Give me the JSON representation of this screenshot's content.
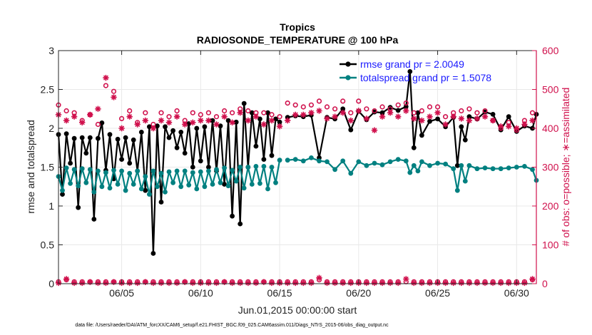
{
  "chart_data": {
    "type": "line",
    "title": "Tropics",
    "subtitle": "RADIOSONDE_TEMPERATURE @ 100 hPa",
    "xlabel": "Jun.01,2015 00:00:00 start",
    "ylabel": "rmse and totalspread",
    "ylabel_right": "# of obs: o=possible; ∗=assimilated",
    "footnote": "data file: /Users/raeder/DAI/ATM_forcXX/CAM6_setup/f.e21.FHIST_BGC.f09_025.CAM6assim.011/Diags_NTrS_2015-06/obs_diag_output.nc",
    "xlim": [
      1,
      31.25
    ],
    "ylim": [
      0,
      3
    ],
    "ylim_right": [
      0,
      600
    ],
    "x_ticks": [
      5,
      10,
      15,
      20,
      25,
      30
    ],
    "x_tick_labels": [
      "06/05",
      "06/10",
      "06/15",
      "06/20",
      "06/25",
      "06/30"
    ],
    "y_ticks": [
      0,
      0.5,
      1,
      1.5,
      2,
      2.5,
      3
    ],
    "y_tick_labels": [
      "0",
      "0.5",
      "1",
      "1.5",
      "2",
      "2.5",
      "3"
    ],
    "y_ticks_right": [
      0,
      100,
      200,
      300,
      400,
      500,
      600
    ],
    "y_tick_labels_right": [
      "0",
      "100",
      "200",
      "300",
      "400",
      "500",
      "600"
    ],
    "legend_position": "top-right",
    "colors": {
      "rmse": "#000000",
      "spread": "#008080",
      "obs": "#d0104c",
      "grid": "#e8e8e8"
    },
    "series": [
      {
        "name": "rmse",
        "legend": "rmse grand pr = 2.0049",
        "x": [
          1.0,
          1.25,
          1.5,
          1.75,
          2.0,
          2.25,
          2.5,
          2.75,
          3.0,
          3.25,
          3.5,
          3.75,
          4.0,
          4.25,
          4.5,
          4.75,
          5.0,
          5.25,
          5.5,
          5.75,
          6.0,
          6.25,
          6.5,
          6.75,
          7.0,
          7.25,
          7.5,
          7.75,
          8.0,
          8.25,
          8.5,
          8.75,
          9.0,
          9.25,
          9.5,
          9.75,
          10.0,
          10.25,
          10.5,
          10.75,
          11.0,
          11.25,
          11.5,
          11.75,
          12.0,
          12.25,
          12.5,
          12.75,
          13.0,
          13.25,
          13.5,
          13.75,
          14.0,
          14.25,
          14.5,
          14.75,
          15.0,
          null,
          15.5,
          16.0,
          16.5,
          17.0,
          17.5,
          18.0,
          18.5,
          19.0,
          19.5,
          20.0,
          20.5,
          21.0,
          21.5,
          22.0,
          22.5,
          23.0,
          23.25,
          23.5,
          23.75,
          24.0,
          24.5,
          25.0,
          25.5,
          26.0,
          26.25,
          26.5,
          26.75,
          27.0,
          27.5,
          28.0,
          28.5,
          29.0,
          29.5,
          30.0,
          30.5,
          31.0,
          31.25
        ],
        "y": [
          1.92,
          1.15,
          1.93,
          1.55,
          1.87,
          0.98,
          1.88,
          1.68,
          1.88,
          0.83,
          1.87,
          2.07,
          1.46,
          1.92,
          1.35,
          1.86,
          1.6,
          1.88,
          1.55,
          1.85,
          1.45,
          1.95,
          1.2,
          2.02,
          0.39,
          2.03,
          1.05,
          2.02,
          1.88,
          1.97,
          1.75,
          1.95,
          1.68,
          2.06,
          1.5,
          2.0,
          1.58,
          2.02,
          1.5,
          2.1,
          1.45,
          2.03,
          1.28,
          2.1,
          0.87,
          2.08,
          0.77,
          2.32,
          1.5,
          2.2,
          1.77,
          2.12,
          1.6,
          2.2,
          1.65,
          2.12,
          2.08,
          null,
          2.14,
          2.16,
          2.15,
          2.17,
          1.62,
          2.14,
          2.12,
          2.25,
          1.98,
          2.22,
          2.11,
          2.21,
          2.2,
          2.27,
          2.23,
          2.28,
          2.73,
          1.75,
          2.2,
          1.91,
          2.09,
          2.12,
          2.02,
          2.14,
          1.52,
          2.02,
          1.85,
          2.15,
          2.12,
          2.21,
          2.18,
          1.98,
          2.15,
          1.96,
          2.03,
          2.0,
          2.18
        ]
      },
      {
        "name": "totalspread",
        "legend": "totalspread grand pr = 1.5078",
        "x": [
          1.0,
          1.25,
          1.5,
          1.75,
          2.0,
          2.25,
          2.5,
          2.75,
          3.0,
          3.25,
          3.5,
          3.75,
          4.0,
          4.25,
          4.5,
          4.75,
          5.0,
          5.25,
          5.5,
          5.75,
          6.0,
          6.25,
          6.5,
          6.75,
          7.0,
          7.25,
          7.5,
          7.75,
          8.0,
          8.25,
          8.5,
          8.75,
          9.0,
          9.25,
          9.5,
          9.75,
          10.0,
          10.25,
          10.5,
          10.75,
          11.0,
          11.25,
          11.5,
          11.75,
          12.0,
          12.25,
          12.5,
          12.75,
          13.0,
          13.25,
          13.5,
          13.75,
          14.0,
          14.25,
          14.5,
          14.75,
          15.0,
          null,
          15.5,
          16.0,
          16.5,
          17.0,
          17.5,
          18.0,
          18.5,
          19.0,
          19.5,
          20.0,
          20.5,
          21.0,
          21.5,
          22.0,
          22.5,
          23.0,
          23.25,
          23.5,
          23.75,
          24.0,
          24.5,
          25.0,
          25.5,
          26.0,
          26.25,
          26.5,
          26.75,
          27.0,
          27.5,
          28.0,
          28.5,
          29.0,
          29.5,
          30.0,
          30.5,
          31.0,
          31.25
        ],
        "y": [
          1.38,
          1.2,
          1.49,
          1.29,
          1.47,
          1.26,
          1.48,
          1.3,
          1.47,
          1.18,
          1.45,
          1.25,
          1.43,
          1.23,
          1.46,
          1.28,
          1.45,
          1.2,
          1.42,
          1.28,
          1.45,
          1.22,
          1.38,
          1.15,
          1.45,
          1.25,
          1.42,
          1.18,
          1.44,
          1.3,
          1.45,
          1.25,
          1.45,
          1.27,
          1.43,
          1.22,
          1.44,
          1.25,
          1.45,
          1.28,
          1.47,
          1.3,
          1.49,
          1.26,
          1.46,
          1.32,
          1.5,
          1.23,
          1.5,
          1.28,
          1.51,
          1.29,
          1.51,
          1.22,
          1.5,
          1.3,
          1.59,
          null,
          1.59,
          1.6,
          1.58,
          1.62,
          1.58,
          1.57,
          1.47,
          1.58,
          1.42,
          1.57,
          1.52,
          1.55,
          1.53,
          1.57,
          1.6,
          1.58,
          1.43,
          1.52,
          1.45,
          1.57,
          1.52,
          1.55,
          1.54,
          1.48,
          1.2,
          1.52,
          1.32,
          1.52,
          1.48,
          1.49,
          1.48,
          1.48,
          1.49,
          1.5,
          1.51,
          1.47,
          1.33
        ]
      },
      {
        "name": "obs_possible",
        "axis": "right",
        "marker": "o",
        "x": [
          1.0,
          1.5,
          2.0,
          2.5,
          3.0,
          3.5,
          4.0,
          4.5,
          5.0,
          5.5,
          6.0,
          6.5,
          7.0,
          7.5,
          8.0,
          8.5,
          9.0,
          9.5,
          10.0,
          10.5,
          11.0,
          11.5,
          12.0,
          12.5,
          13.0,
          13.5,
          14.0,
          14.5,
          15.0,
          15.5,
          16.0,
          16.5,
          17.0,
          17.5,
          18.0,
          18.5,
          19.0,
          19.5,
          20.0,
          20.5,
          21.0,
          21.5,
          22.0,
          22.5,
          23.0,
          23.5,
          24.0,
          24.5,
          25.0,
          25.5,
          26.0,
          26.5,
          27.0,
          27.5,
          28.0,
          28.5,
          29.0,
          29.5,
          30.0,
          30.5,
          31.0
        ],
        "y": [
          460,
          445,
          440,
          420,
          435,
          410,
          510,
          495,
          425,
          445,
          415,
          440,
          410,
          440,
          430,
          445,
          420,
          440,
          435,
          440,
          430,
          445,
          440,
          450,
          445,
          440,
          440,
          435,
          430,
          465,
          460,
          455,
          460,
          470,
          455,
          450,
          470,
          440,
          470,
          450,
          445,
          455,
          450,
          460,
          465,
          440,
          445,
          455,
          455,
          430,
          440,
          445,
          450,
          440,
          445,
          420,
          400,
          415,
          395,
          420,
          440
        ]
      },
      {
        "name": "obs_assimilated",
        "axis": "right",
        "marker": "*",
        "x": [
          1.0,
          1.5,
          2.0,
          2.5,
          3.0,
          3.5,
          4.0,
          4.5,
          5.0,
          5.5,
          6.0,
          6.5,
          7.0,
          7.5,
          8.0,
          8.5,
          9.0,
          9.5,
          10.0,
          10.5,
          11.0,
          11.5,
          12.0,
          12.5,
          13.0,
          13.5,
          14.0,
          14.5,
          15.0,
          15.5,
          16.0,
          16.5,
          17.0,
          17.5,
          18.0,
          18.5,
          19.0,
          19.5,
          20.0,
          20.5,
          21.0,
          21.5,
          22.0,
          22.5,
          23.0,
          23.5,
          24.0,
          24.5,
          25.0,
          25.5,
          26.0,
          26.5,
          27.0,
          27.5,
          28.0,
          28.5,
          29.0,
          29.5,
          30.0,
          30.5,
          31.0
        ],
        "y": [
          435,
          420,
          430,
          415,
          435,
          450,
          530,
          480,
          400,
          430,
          410,
          420,
          400,
          420,
          415,
          430,
          410,
          415,
          420,
          420,
          410,
          430,
          415,
          440,
          420,
          430,
          410,
          420,
          405,
          420,
          435,
          435,
          440,
          445,
          425,
          430,
          440,
          420,
          445,
          425,
          395,
          430,
          440,
          430,
          445,
          425,
          420,
          430,
          440,
          410,
          430,
          425,
          420,
          425,
          430,
          420,
          405,
          405,
          400,
          410,
          420
        ]
      },
      {
        "name": "obs_possible_low",
        "axis": "right",
        "marker": "o",
        "x": [
          1.0,
          1.5,
          2.0,
          2.5,
          3.0,
          3.5,
          4.0,
          4.5,
          5.0,
          5.5,
          6.0,
          6.5,
          7.0,
          7.5,
          8.0,
          8.5,
          9.0,
          9.5,
          10.0,
          10.5,
          11.0,
          11.5,
          12.0,
          12.5,
          13.0,
          13.5,
          14.0,
          14.5,
          15.0,
          15.5,
          16.0,
          16.5,
          17.0,
          17.5,
          18.0,
          18.5,
          19.0,
          19.5,
          20.0,
          20.5,
          21.0,
          21.5,
          22.0,
          22.5,
          23.0,
          23.5,
          24.0,
          24.5,
          25.0,
          25.5,
          26.0,
          26.5,
          27.0,
          27.5,
          28.0,
          28.5,
          29.0,
          29.5,
          30.0,
          30.5,
          31.0
        ],
        "y": [
          5,
          10,
          5,
          5,
          5,
          5,
          5,
          5,
          5,
          5,
          5,
          5,
          5,
          5,
          5,
          5,
          5,
          5,
          5,
          5,
          5,
          5,
          5,
          5,
          5,
          5,
          5,
          5,
          5,
          5,
          5,
          5,
          5,
          10,
          5,
          5,
          5,
          5,
          5,
          5,
          5,
          5,
          5,
          5,
          5,
          5,
          5,
          5,
          5,
          5,
          5,
          5,
          5,
          5,
          5,
          5,
          5,
          5,
          5,
          5,
          10
        ]
      },
      {
        "name": "obs_assimilated_low",
        "axis": "right",
        "marker": "*",
        "x": [
          1.0,
          1.5,
          2.0,
          2.5,
          3.0,
          3.5,
          4.0,
          4.5,
          5.0,
          5.5,
          6.0,
          6.5,
          7.0,
          7.5,
          8.0,
          8.5,
          9.0,
          9.5,
          10.0,
          10.5,
          11.0,
          11.5,
          12.0,
          12.5,
          13.0,
          13.5,
          14.0,
          14.5,
          15.0,
          15.5,
          16.0,
          16.5,
          17.0,
          17.5,
          18.0,
          18.5,
          19.0,
          19.5,
          20.0,
          20.5,
          21.0,
          21.5,
          22.0,
          22.5,
          23.0,
          23.5,
          24.0,
          24.5,
          25.0,
          25.5,
          26.0,
          26.5,
          27.0,
          27.5,
          28.0,
          28.5,
          29.0,
          29.5,
          30.0,
          30.5,
          31.0
        ],
        "y": [
          2,
          12,
          2,
          2,
          4,
          2,
          2,
          4,
          2,
          2,
          2,
          4,
          2,
          2,
          2,
          2,
          4,
          2,
          2,
          2,
          2,
          4,
          2,
          2,
          2,
          2,
          4,
          2,
          2,
          2,
          2,
          2,
          2,
          15,
          2,
          2,
          2,
          2,
          2,
          2,
          2,
          2,
          2,
          2,
          12,
          2,
          2,
          2,
          2,
          2,
          2,
          2,
          2,
          2,
          2,
          2,
          2,
          2,
          2,
          2,
          12
        ]
      }
    ]
  }
}
